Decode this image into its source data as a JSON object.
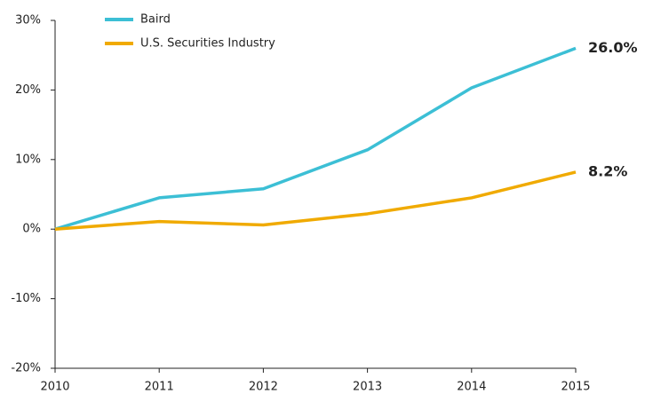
{
  "chart_data": {
    "type": "line",
    "x": [
      2010,
      2011,
      2012,
      2013,
      2014,
      2015
    ],
    "xlim": [
      2010,
      2015
    ],
    "xticks": [
      2010,
      2011,
      2012,
      2013,
      2014,
      2015
    ],
    "ylim": [
      -20,
      30
    ],
    "yticks": [
      {
        "value": -20,
        "label": "-20%"
      },
      {
        "value": -10,
        "label": "-10%"
      },
      {
        "value": 0,
        "label": "0%"
      },
      {
        "value": 10,
        "label": "10%"
      },
      {
        "value": 20,
        "label": "20%"
      },
      {
        "value": 30,
        "label": "30%"
      }
    ],
    "grid": false,
    "legend": "top-left",
    "series": [
      {
        "name": "Baird",
        "color": "#3cbfd5",
        "values": [
          0,
          4.5,
          5.8,
          11.4,
          20.3,
          26.0
        ],
        "value_labels": [
          null,
          null,
          null,
          null,
          null,
          "26.0%"
        ]
      },
      {
        "name": "U.S. Securities Industry",
        "color": "#f0aa00",
        "values": [
          0,
          1.1,
          0.6,
          2.2,
          4.5,
          8.2
        ],
        "value_labels": [
          null,
          null,
          null,
          null,
          null,
          "8.2%"
        ]
      }
    ]
  }
}
